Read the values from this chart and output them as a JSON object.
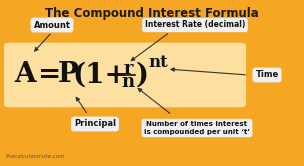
{
  "bg_color": "#F5A623",
  "formula_bg": "#FDDFA0",
  "label_bg": "#F0F0F0",
  "title": "The Compound Interest Formula",
  "title_color": "#1a1a1a",
  "labels": {
    "amount": "Amount",
    "interest_rate": "Interest Rate (decimal)",
    "principal": "Principal",
    "n_label": "Number of times interest\nis compounded per unit ‘t’",
    "time": "Time"
  },
  "watermark": "thecalculatorsite.com",
  "formula_color": "#111111",
  "label_text_color": "#111111",
  "figw": 3.04,
  "figh": 1.66,
  "dpi": 100
}
